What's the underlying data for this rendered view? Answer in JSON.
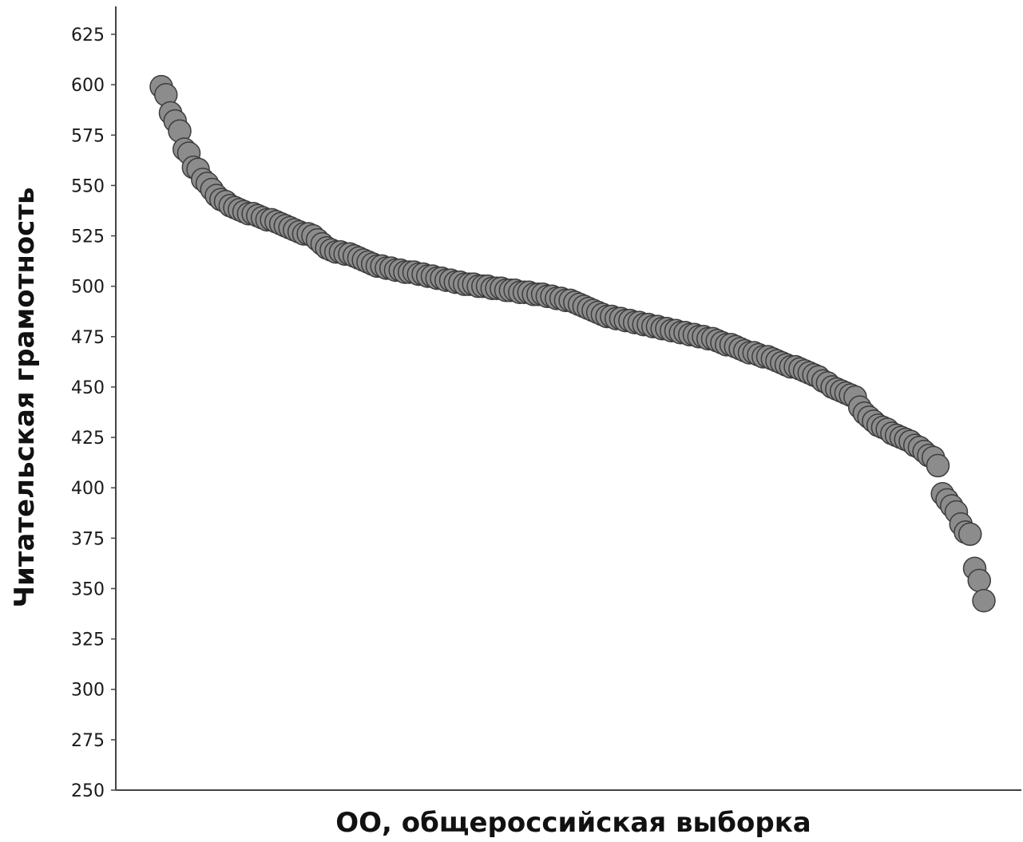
{
  "chart_data": {
    "type": "scatter",
    "title": "",
    "xlabel": "ОО, общероссийская выборка",
    "ylabel": "Читательская грамотность",
    "ylim": [
      250,
      637
    ],
    "yticks": [
      250,
      275,
      300,
      325,
      350,
      375,
      400,
      425,
      450,
      475,
      500,
      525,
      550,
      575,
      600,
      625
    ],
    "x_ticks_shown": false,
    "grid": false,
    "legend": "none",
    "marker": {
      "shape": "circle",
      "fill": "#8c8c8c",
      "stroke": "#3d3d3d"
    },
    "series": [
      {
        "values": [
          599,
          595,
          586,
          582,
          577,
          568,
          566,
          559,
          558,
          553,
          551,
          548,
          545,
          543,
          542,
          540,
          539,
          538,
          537,
          536,
          536,
          535,
          534,
          533,
          533,
          532,
          531,
          530,
          529,
          528,
          527,
          526,
          526,
          525,
          523,
          521,
          519,
          518,
          517,
          517,
          516,
          516,
          515,
          514,
          513,
          512,
          511,
          510,
          510,
          509,
          509,
          508,
          508,
          507,
          507,
          507,
          506,
          506,
          505,
          505,
          504,
          504,
          503,
          503,
          502,
          502,
          501,
          501,
          501,
          500,
          500,
          500,
          499,
          499,
          499,
          498,
          498,
          498,
          497,
          497,
          497,
          496,
          496,
          496,
          495,
          495,
          494,
          494,
          493,
          493,
          492,
          491,
          490,
          489,
          488,
          487,
          486,
          485,
          485,
          484,
          484,
          483,
          483,
          482,
          482,
          481,
          481,
          480,
          480,
          479,
          479,
          478,
          478,
          477,
          477,
          476,
          476,
          475,
          475,
          474,
          474,
          473,
          472,
          471,
          471,
          470,
          469,
          468,
          467,
          467,
          466,
          465,
          465,
          464,
          463,
          462,
          461,
          460,
          460,
          459,
          458,
          457,
          456,
          455,
          453,
          452,
          450,
          449,
          448,
          447,
          446,
          445,
          440,
          437,
          435,
          433,
          431,
          430,
          429,
          427,
          426,
          425,
          424,
          423,
          421,
          420,
          418,
          416,
          415,
          411,
          397,
          394,
          391,
          388,
          382,
          378,
          377,
          360,
          354,
          344
        ]
      }
    ]
  }
}
